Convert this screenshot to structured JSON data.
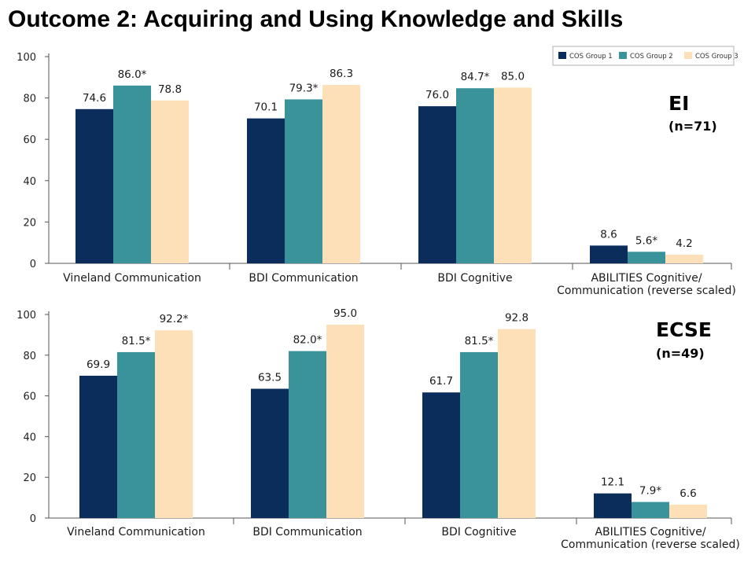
{
  "title": "Outcome 2: Acquiring and Using Knowledge and Skills",
  "colors": {
    "group1": "#0b2d5c",
    "group2": "#3a939a",
    "group3": "#fde0b8",
    "axis": "#555555"
  },
  "chart_data": [
    {
      "type": "bar",
      "panel_label": "EI",
      "panel_n": "(n=71)",
      "categories": [
        [
          "Vineland Communication"
        ],
        [
          "BDI Communication"
        ],
        [
          "BDI Cognitive"
        ],
        [
          "ABILITIES Cognitive/",
          "Communication (reverse scaled)"
        ]
      ],
      "series": [
        {
          "name": "COS Group 1",
          "values": [
            74.6,
            70.1,
            76.0,
            8.6
          ],
          "labels": [
            "74.6",
            "70.1",
            "76.0",
            "8.6"
          ]
        },
        {
          "name": "COS Group 2",
          "values": [
            86.0,
            79.3,
            84.7,
            5.6
          ],
          "labels": [
            "86.0*",
            "79.3*",
            "84.7*",
            "5.6*"
          ]
        },
        {
          "name": "COS Group 3",
          "values": [
            78.8,
            86.3,
            85.0,
            4.2
          ],
          "labels": [
            "78.8",
            "86.3",
            "85.0",
            "4.2"
          ]
        }
      ],
      "yticks": [
        0,
        20,
        40,
        60,
        80,
        100
      ],
      "ylim": [
        0,
        100
      ],
      "legend": "top-right",
      "grid": false
    },
    {
      "type": "bar",
      "panel_label": "ECSE",
      "panel_n": "(n=49)",
      "categories": [
        [
          "Vineland Communication"
        ],
        [
          "BDI Communication"
        ],
        [
          "BDI Cognitive"
        ],
        [
          "ABILITIES Cognitive/",
          "Communication (reverse scaled)"
        ]
      ],
      "series": [
        {
          "name": "COS Group 1",
          "values": [
            69.9,
            63.5,
            61.7,
            12.1
          ],
          "labels": [
            "69.9",
            "63.5",
            "61.7",
            "12.1"
          ]
        },
        {
          "name": "COS Group 2",
          "values": [
            81.5,
            82.0,
            81.5,
            7.9
          ],
          "labels": [
            "81.5*",
            "82.0*",
            "81.5*",
            "7.9*"
          ]
        },
        {
          "name": "COS Group 3",
          "values": [
            92.2,
            95.0,
            92.8,
            6.6
          ],
          "labels": [
            "92.2*",
            "95.0",
            "92.8",
            "6.6"
          ]
        }
      ],
      "yticks": [
        0,
        20,
        40,
        60,
        80,
        100
      ],
      "ylim": [
        0,
        100
      ],
      "grid": false
    }
  ]
}
